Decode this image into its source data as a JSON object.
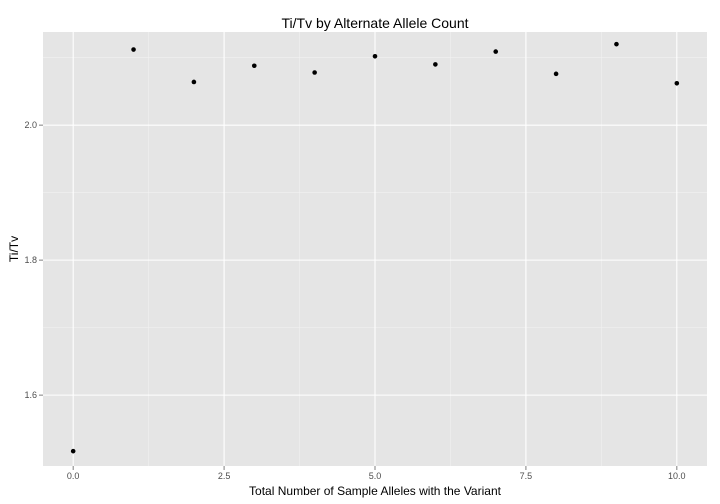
{
  "chart_data": {
    "type": "scatter",
    "title": "Ti/Tv by Alternate Allele Count",
    "xlabel": "Total Number of Sample Alleles with the Variant",
    "ylabel": "Ti/Tv",
    "xlim": [
      -0.5,
      10.5
    ],
    "ylim": [
      1.495,
      2.138
    ],
    "x_ticks": [
      0,
      2.5,
      5,
      7.5,
      10
    ],
    "x_tick_labels": [
      "0.0",
      "2.5",
      "5.0",
      "7.5",
      "10.0"
    ],
    "y_ticks": [
      1.6,
      1.8,
      2.0
    ],
    "y_tick_labels": [
      "1.6",
      "1.8",
      "2.0"
    ],
    "grid": true,
    "colors": {
      "panel": "#e5e5e5",
      "grid_major": "#ffffff",
      "grid_minor": "#f2f2f2",
      "point": "#000000"
    },
    "points": [
      {
        "x": 0,
        "y": 1.517
      },
      {
        "x": 1,
        "y": 2.112
      },
      {
        "x": 2,
        "y": 2.064
      },
      {
        "x": 3,
        "y": 2.088
      },
      {
        "x": 4,
        "y": 2.078
      },
      {
        "x": 5,
        "y": 2.102
      },
      {
        "x": 6,
        "y": 2.09
      },
      {
        "x": 7,
        "y": 2.109
      },
      {
        "x": 8,
        "y": 2.076
      },
      {
        "x": 9,
        "y": 2.12
      },
      {
        "x": 10,
        "y": 2.062
      }
    ]
  }
}
